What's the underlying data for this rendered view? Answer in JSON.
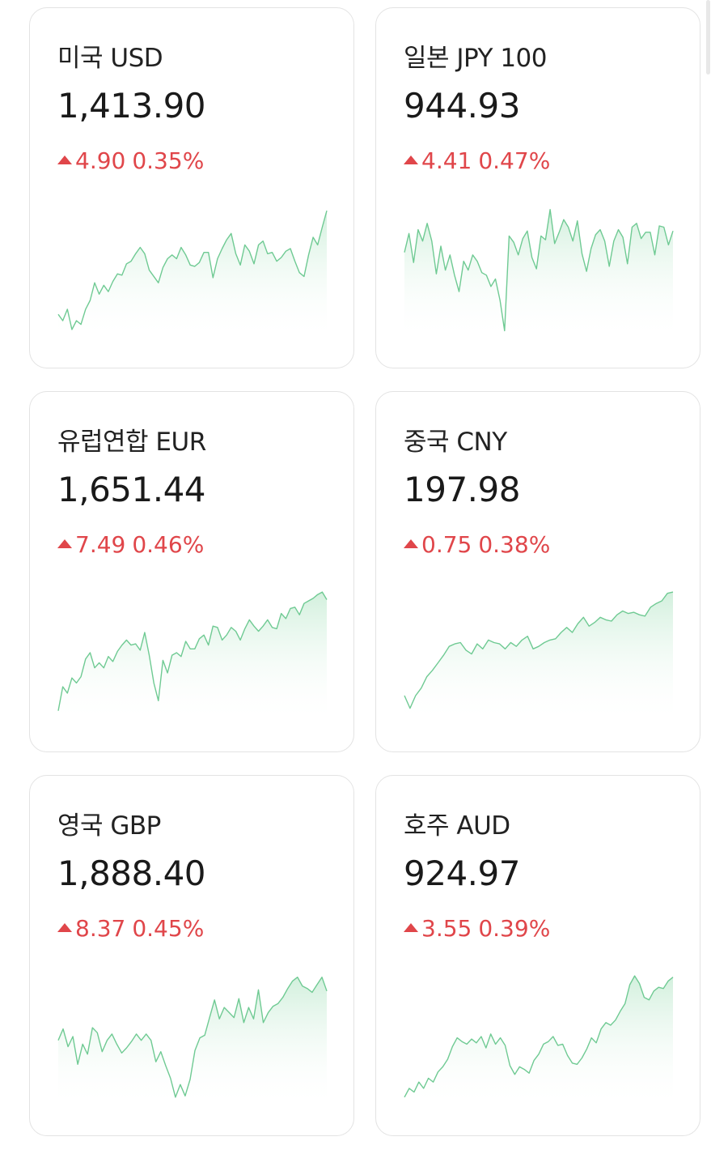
{
  "colors": {
    "up": "#e0464a",
    "spark_line": "#6fca93",
    "spark_fill_top": "#cdeed9"
  },
  "cards": [
    {
      "title": "미국 USD",
      "price": "1,413.90",
      "change": "4.90",
      "change_pct": "0.35%",
      "direction_icon": "triangle-up-icon",
      "sparkline": [
        0.14,
        0.09,
        0.18,
        0.02,
        0.09,
        0.06,
        0.18,
        0.25,
        0.39,
        0.3,
        0.37,
        0.32,
        0.4,
        0.46,
        0.45,
        0.54,
        0.56,
        0.62,
        0.67,
        0.62,
        0.49,
        0.44,
        0.39,
        0.51,
        0.58,
        0.61,
        0.58,
        0.67,
        0.61,
        0.53,
        0.52,
        0.55,
        0.63,
        0.63,
        0.43,
        0.58,
        0.66,
        0.73,
        0.78,
        0.62,
        0.53,
        0.69,
        0.64,
        0.54,
        0.69,
        0.72,
        0.62,
        0.63,
        0.56,
        0.59,
        0.64,
        0.66,
        0.56,
        0.47,
        0.44,
        0.61,
        0.75,
        0.69,
        0.83,
        0.96
      ]
    },
    {
      "title": "일본 JPY 100",
      "price": "944.93",
      "change": "4.41",
      "change_pct": "0.47%",
      "direction_icon": "triangle-up-icon",
      "sparkline": [
        0.63,
        0.78,
        0.55,
        0.81,
        0.72,
        0.86,
        0.72,
        0.46,
        0.68,
        0.49,
        0.61,
        0.45,
        0.32,
        0.56,
        0.49,
        0.61,
        0.56,
        0.47,
        0.45,
        0.36,
        0.42,
        0.25,
        0.01,
        0.76,
        0.71,
        0.61,
        0.74,
        0.8,
        0.59,
        0.5,
        0.76,
        0.73,
        0.97,
        0.7,
        0.79,
        0.89,
        0.83,
        0.72,
        0.88,
        0.62,
        0.48,
        0.66,
        0.77,
        0.81,
        0.72,
        0.52,
        0.72,
        0.81,
        0.75,
        0.54,
        0.83,
        0.86,
        0.74,
        0.79,
        0.79,
        0.61,
        0.84,
        0.83,
        0.69,
        0.8
      ]
    },
    {
      "title": "유럽연합 EUR",
      "price": "1,651.44",
      "change": "7.49",
      "change_pct": "0.46%",
      "direction_icon": "triangle-up-icon",
      "sparkline": [
        0.04,
        0.23,
        0.18,
        0.3,
        0.26,
        0.31,
        0.45,
        0.5,
        0.38,
        0.42,
        0.38,
        0.47,
        0.43,
        0.51,
        0.56,
        0.6,
        0.56,
        0.57,
        0.52,
        0.66,
        0.48,
        0.26,
        0.12,
        0.44,
        0.34,
        0.48,
        0.5,
        0.47,
        0.59,
        0.53,
        0.53,
        0.61,
        0.64,
        0.56,
        0.71,
        0.7,
        0.6,
        0.64,
        0.7,
        0.67,
        0.6,
        0.69,
        0.76,
        0.71,
        0.67,
        0.71,
        0.76,
        0.7,
        0.69,
        0.81,
        0.77,
        0.85,
        0.86,
        0.8,
        0.89,
        0.91,
        0.93,
        0.96,
        0.98,
        0.92
      ]
    },
    {
      "title": "중국 CNY",
      "price": "197.98",
      "change": "0.75",
      "change_pct": "0.38%",
      "direction_icon": "triangle-up-icon",
      "sparkline": [
        0.16,
        0.06,
        0.16,
        0.22,
        0.31,
        0.36,
        0.42,
        0.48,
        0.55,
        0.57,
        0.58,
        0.52,
        0.49,
        0.57,
        0.53,
        0.6,
        0.58,
        0.57,
        0.53,
        0.58,
        0.55,
        0.6,
        0.63,
        0.53,
        0.55,
        0.58,
        0.6,
        0.61,
        0.66,
        0.7,
        0.66,
        0.73,
        0.78,
        0.71,
        0.74,
        0.78,
        0.76,
        0.75,
        0.8,
        0.83,
        0.81,
        0.82,
        0.8,
        0.79,
        0.86,
        0.89,
        0.91,
        0.97,
        0.98
      ]
    },
    {
      "title": "영국 GBP",
      "price": "1,888.40",
      "change": "8.37",
      "change_pct": "0.45%",
      "direction_icon": "triangle-up-icon",
      "sparkline": [
        0.47,
        0.56,
        0.42,
        0.5,
        0.28,
        0.44,
        0.36,
        0.57,
        0.53,
        0.38,
        0.47,
        0.52,
        0.44,
        0.37,
        0.41,
        0.46,
        0.52,
        0.47,
        0.52,
        0.47,
        0.3,
        0.38,
        0.27,
        0.17,
        0.02,
        0.12,
        0.03,
        0.16,
        0.39,
        0.49,
        0.51,
        0.65,
        0.79,
        0.64,
        0.73,
        0.69,
        0.65,
        0.8,
        0.61,
        0.73,
        0.64,
        0.87,
        0.61,
        0.69,
        0.74,
        0.76,
        0.81,
        0.88,
        0.94,
        0.97,
        0.9,
        0.88,
        0.85,
        0.91,
        0.97,
        0.86
      ]
    },
    {
      "title": "호주 AUD",
      "price": "924.97",
      "change": "3.55",
      "change_pct": "0.39%",
      "direction_icon": "triangle-up-icon",
      "sparkline": [
        0.02,
        0.09,
        0.06,
        0.14,
        0.09,
        0.17,
        0.14,
        0.22,
        0.26,
        0.32,
        0.42,
        0.49,
        0.46,
        0.44,
        0.48,
        0.45,
        0.5,
        0.41,
        0.52,
        0.44,
        0.49,
        0.43,
        0.27,
        0.2,
        0.26,
        0.24,
        0.21,
        0.31,
        0.36,
        0.44,
        0.46,
        0.5,
        0.43,
        0.44,
        0.35,
        0.29,
        0.28,
        0.33,
        0.4,
        0.49,
        0.45,
        0.56,
        0.61,
        0.59,
        0.63,
        0.7,
        0.76,
        0.91,
        0.98,
        0.92,
        0.81,
        0.79,
        0.86,
        0.89,
        0.88,
        0.94,
        0.97
      ]
    }
  ]
}
